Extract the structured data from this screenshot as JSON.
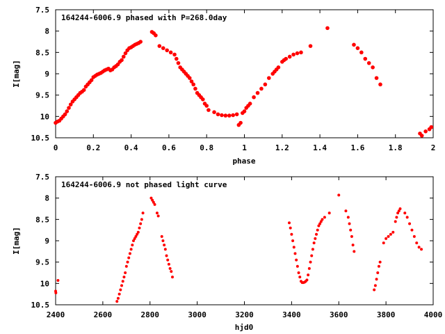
{
  "chart_data": [
    {
      "type": "scatter",
      "title": "164244-6006.9 phased with P=268.0day",
      "xlabel": "phase",
      "ylabel": "I[mag]",
      "xlim": [
        0,
        2
      ],
      "ylim": [
        10.5,
        7.5
      ],
      "y_inverted": true,
      "xticks": [
        "0",
        "0.2",
        "0.4",
        "0.6",
        "0.8",
        "1",
        "1.2",
        "1.4",
        "1.6",
        "1.8",
        "2"
      ],
      "yticks": [
        "7.5",
        "8",
        "8.5",
        "9",
        "9.5",
        "10",
        "10.5"
      ],
      "grid": false,
      "marker_color": "#ff0000",
      "points": [
        [
          0.0,
          10.15
        ],
        [
          0.01,
          10.12
        ],
        [
          0.02,
          10.1
        ],
        [
          0.03,
          10.05
        ],
        [
          0.04,
          10.0
        ],
        [
          0.05,
          9.95
        ],
        [
          0.06,
          9.88
        ],
        [
          0.07,
          9.8
        ],
        [
          0.08,
          9.72
        ],
        [
          0.09,
          9.65
        ],
        [
          0.1,
          9.6
        ],
        [
          0.11,
          9.55
        ],
        [
          0.12,
          9.5
        ],
        [
          0.13,
          9.45
        ],
        [
          0.14,
          9.42
        ],
        [
          0.15,
          9.38
        ],
        [
          0.16,
          9.3
        ],
        [
          0.17,
          9.25
        ],
        [
          0.18,
          9.2
        ],
        [
          0.19,
          9.15
        ],
        [
          0.2,
          9.08
        ],
        [
          0.21,
          9.05
        ],
        [
          0.22,
          9.02
        ],
        [
          0.23,
          9.0
        ],
        [
          0.24,
          8.98
        ],
        [
          0.25,
          8.95
        ],
        [
          0.26,
          8.92
        ],
        [
          0.27,
          8.9
        ],
        [
          0.28,
          8.88
        ],
        [
          0.29,
          8.92
        ],
        [
          0.3,
          8.9
        ],
        [
          0.31,
          8.85
        ],
        [
          0.32,
          8.82
        ],
        [
          0.33,
          8.78
        ],
        [
          0.34,
          8.72
        ],
        [
          0.35,
          8.68
        ],
        [
          0.36,
          8.6
        ],
        [
          0.37,
          8.52
        ],
        [
          0.38,
          8.45
        ],
        [
          0.39,
          8.4
        ],
        [
          0.4,
          8.38
        ],
        [
          0.41,
          8.35
        ],
        [
          0.42,
          8.32
        ],
        [
          0.43,
          8.3
        ],
        [
          0.44,
          8.28
        ],
        [
          0.45,
          8.25
        ],
        [
          0.51,
          8.02
        ],
        [
          0.52,
          8.05
        ],
        [
          0.53,
          8.1
        ],
        [
          0.55,
          8.35
        ],
        [
          0.57,
          8.4
        ],
        [
          0.59,
          8.45
        ],
        [
          0.61,
          8.5
        ],
        [
          0.63,
          8.55
        ],
        [
          0.64,
          8.65
        ],
        [
          0.65,
          8.75
        ],
        [
          0.66,
          8.85
        ],
        [
          0.67,
          8.9
        ],
        [
          0.68,
          8.95
        ],
        [
          0.69,
          9.0
        ],
        [
          0.7,
          9.05
        ],
        [
          0.71,
          9.1
        ],
        [
          0.72,
          9.18
        ],
        [
          0.73,
          9.25
        ],
        [
          0.74,
          9.35
        ],
        [
          0.75,
          9.45
        ],
        [
          0.76,
          9.5
        ],
        [
          0.77,
          9.55
        ],
        [
          0.78,
          9.6
        ],
        [
          0.79,
          9.7
        ],
        [
          0.8,
          9.75
        ],
        [
          0.81,
          9.85
        ],
        [
          0.84,
          9.9
        ],
        [
          0.86,
          9.95
        ],
        [
          0.88,
          9.97
        ],
        [
          0.9,
          9.98
        ],
        [
          0.92,
          9.98
        ],
        [
          0.94,
          9.97
        ],
        [
          0.96,
          9.95
        ],
        [
          0.97,
          10.2
        ],
        [
          0.98,
          10.15
        ],
        [
          0.99,
          9.92
        ],
        [
          1.0,
          9.88
        ],
        [
          1.01,
          9.8
        ],
        [
          1.02,
          9.75
        ],
        [
          1.03,
          9.7
        ],
        [
          1.05,
          9.55
        ],
        [
          1.07,
          9.45
        ],
        [
          1.09,
          9.35
        ],
        [
          1.11,
          9.25
        ],
        [
          1.13,
          9.1
        ],
        [
          1.15,
          9.0
        ],
        [
          1.16,
          8.95
        ],
        [
          1.17,
          8.9
        ],
        [
          1.18,
          8.85
        ],
        [
          1.2,
          8.72
        ],
        [
          1.21,
          8.68
        ],
        [
          1.22,
          8.65
        ],
        [
          1.24,
          8.6
        ],
        [
          1.26,
          8.55
        ],
        [
          1.28,
          8.52
        ],
        [
          1.3,
          8.5
        ],
        [
          1.35,
          8.35
        ],
        [
          1.44,
          7.93
        ],
        [
          1.58,
          8.32
        ],
        [
          1.6,
          8.4
        ],
        [
          1.62,
          8.5
        ],
        [
          1.64,
          8.65
        ],
        [
          1.66,
          8.75
        ],
        [
          1.68,
          8.85
        ],
        [
          1.7,
          9.1
        ],
        [
          1.72,
          9.25
        ],
        [
          1.93,
          10.4
        ],
        [
          1.94,
          10.45
        ],
        [
          1.96,
          10.35
        ],
        [
          1.98,
          10.3
        ],
        [
          1.99,
          10.25
        ]
      ]
    },
    {
      "type": "scatter",
      "title": "164244-6006.9 not phased light curve",
      "xlabel": "hjd0",
      "ylabel": "I[mag]",
      "xlim": [
        2400,
        4000
      ],
      "ylim": [
        10.5,
        7.5
      ],
      "y_inverted": true,
      "xticks": [
        "2400",
        "2600",
        "2800",
        "3000",
        "3200",
        "3400",
        "3600",
        "3800",
        "4000"
      ],
      "yticks": [
        "7.5",
        "8",
        "8.5",
        "9",
        "9.5",
        "10",
        "10.5"
      ],
      "grid": false,
      "marker_color": "#ff0000",
      "points": [
        [
          2400,
          10.18
        ],
        [
          2401,
          10.22
        ],
        [
          2410,
          9.93
        ],
        [
          2660,
          10.42
        ],
        [
          2665,
          10.35
        ],
        [
          2670,
          10.25
        ],
        [
          2675,
          10.15
        ],
        [
          2680,
          10.05
        ],
        [
          2685,
          9.95
        ],
        [
          2690,
          9.85
        ],
        [
          2695,
          9.75
        ],
        [
          2700,
          9.6
        ],
        [
          2705,
          9.5
        ],
        [
          2710,
          9.4
        ],
        [
          2715,
          9.3
        ],
        [
          2720,
          9.2
        ],
        [
          2725,
          9.1
        ],
        [
          2730,
          9.0
        ],
        [
          2735,
          8.95
        ],
        [
          2740,
          8.9
        ],
        [
          2745,
          8.85
        ],
        [
          2750,
          8.8
        ],
        [
          2755,
          8.7
        ],
        [
          2760,
          8.6
        ],
        [
          2765,
          8.5
        ],
        [
          2770,
          8.35
        ],
        [
          2805,
          8.0
        ],
        [
          2810,
          8.05
        ],
        [
          2815,
          8.1
        ],
        [
          2820,
          8.15
        ],
        [
          2830,
          8.35
        ],
        [
          2835,
          8.42
        ],
        [
          2850,
          8.9
        ],
        [
          2855,
          9.0
        ],
        [
          2860,
          9.1
        ],
        [
          2865,
          9.2
        ],
        [
          2870,
          9.35
        ],
        [
          2875,
          9.45
        ],
        [
          2880,
          9.55
        ],
        [
          2885,
          9.65
        ],
        [
          2890,
          9.72
        ],
        [
          2895,
          9.85
        ],
        [
          3390,
          8.58
        ],
        [
          3395,
          8.7
        ],
        [
          3400,
          8.85
        ],
        [
          3405,
          9.0
        ],
        [
          3410,
          9.15
        ],
        [
          3415,
          9.3
        ],
        [
          3420,
          9.45
        ],
        [
          3425,
          9.6
        ],
        [
          3430,
          9.75
        ],
        [
          3435,
          9.85
        ],
        [
          3440,
          9.95
        ],
        [
          3445,
          9.98
        ],
        [
          3450,
          9.98
        ],
        [
          3455,
          9.97
        ],
        [
          3460,
          9.95
        ],
        [
          3465,
          9.92
        ],
        [
          3470,
          9.8
        ],
        [
          3475,
          9.65
        ],
        [
          3480,
          9.5
        ],
        [
          3485,
          9.35
        ],
        [
          3490,
          9.2
        ],
        [
          3495,
          9.05
        ],
        [
          3500,
          8.95
        ],
        [
          3505,
          8.85
        ],
        [
          3510,
          8.75
        ],
        [
          3515,
          8.65
        ],
        [
          3520,
          8.6
        ],
        [
          3525,
          8.55
        ],
        [
          3530,
          8.5
        ],
        [
          3540,
          8.45
        ],
        [
          3560,
          8.35
        ],
        [
          3600,
          7.93
        ],
        [
          3630,
          8.3
        ],
        [
          3640,
          8.45
        ],
        [
          3645,
          8.6
        ],
        [
          3650,
          8.75
        ],
        [
          3655,
          8.9
        ],
        [
          3660,
          9.1
        ],
        [
          3665,
          9.25
        ],
        [
          3750,
          10.15
        ],
        [
          3755,
          10.05
        ],
        [
          3760,
          9.9
        ],
        [
          3765,
          9.75
        ],
        [
          3770,
          9.6
        ],
        [
          3775,
          9.5
        ],
        [
          3790,
          9.05
        ],
        [
          3800,
          8.95
        ],
        [
          3810,
          8.9
        ],
        [
          3820,
          8.85
        ],
        [
          3830,
          8.8
        ],
        [
          3840,
          8.55
        ],
        [
          3845,
          8.45
        ],
        [
          3850,
          8.35
        ],
        [
          3855,
          8.3
        ],
        [
          3860,
          8.25
        ],
        [
          3880,
          8.35
        ],
        [
          3890,
          8.45
        ],
        [
          3900,
          8.6
        ],
        [
          3910,
          8.75
        ],
        [
          3920,
          8.9
        ],
        [
          3930,
          9.05
        ],
        [
          3940,
          9.15
        ],
        [
          3950,
          9.2
        ]
      ]
    }
  ]
}
